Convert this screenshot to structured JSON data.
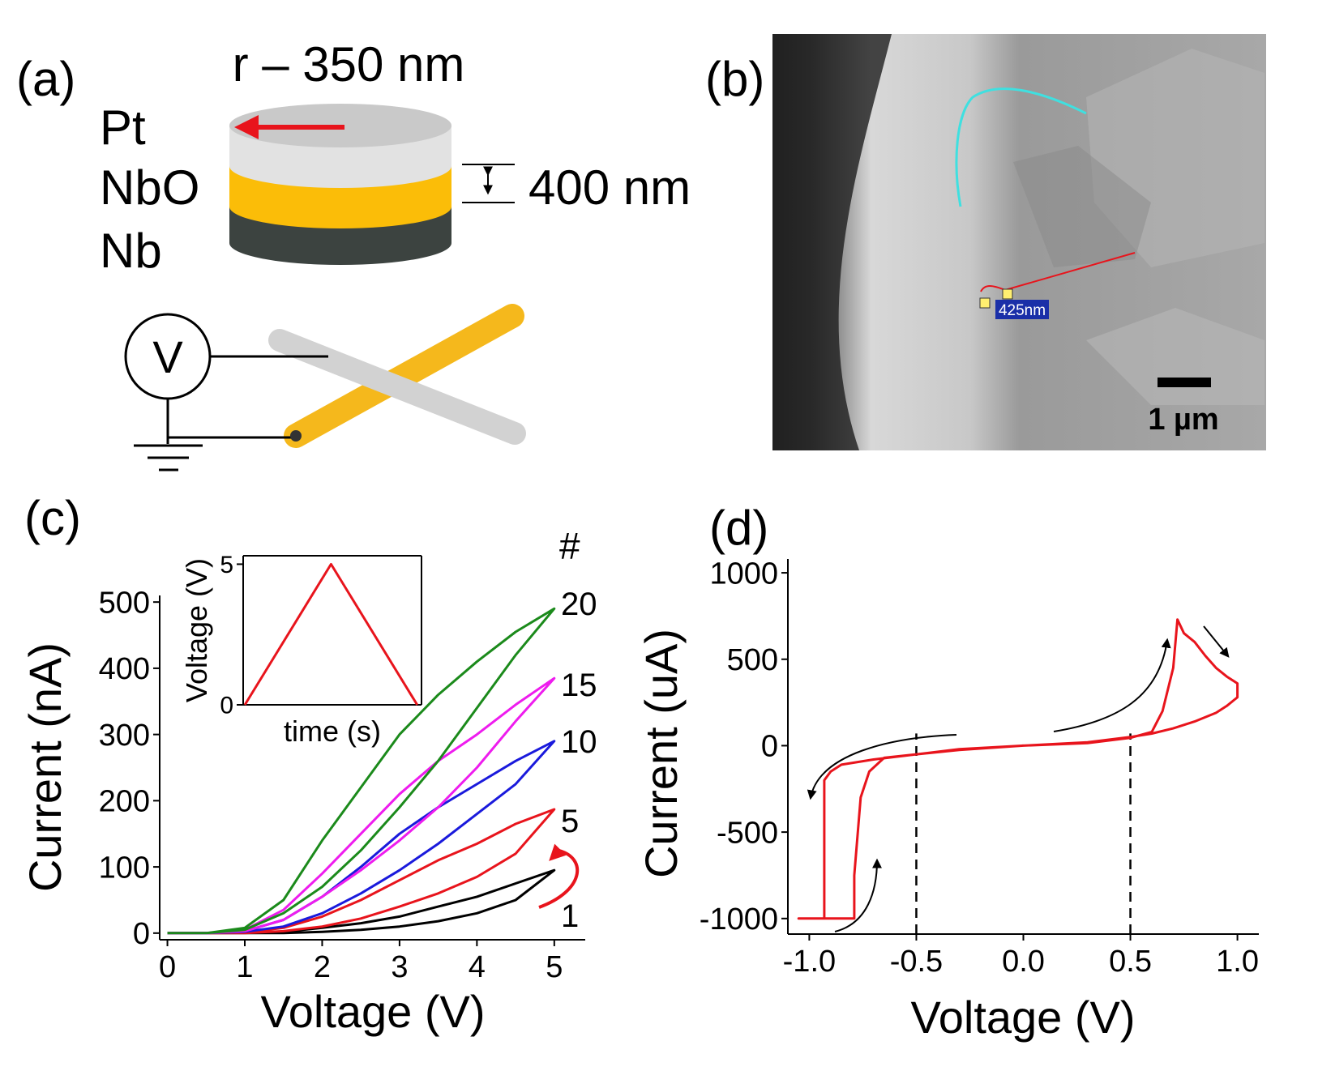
{
  "panels": {
    "a": {
      "label": "(a)",
      "radius": "r – 350 nm",
      "layers": [
        "Pt",
        "NbO",
        "Nb"
      ],
      "thickness": "400 nm",
      "meter": "V"
    },
    "b": {
      "label": "(b)",
      "measure": "425nm",
      "scale_bar": "1 µm"
    }
  },
  "chart_data": [
    {
      "type": "line",
      "panel_label": "(c)",
      "legend_title": "#",
      "xlabel": "Voltage (V)",
      "ylabel": "Current (nA)",
      "xlim": [
        -0.1,
        5.4
      ],
      "ylim": [
        -10,
        510
      ],
      "xticks": [
        0,
        1,
        2,
        3,
        4,
        5
      ],
      "yticks": [
        0,
        100,
        200,
        300,
        400,
        500
      ],
      "series": [
        {
          "name": "1",
          "color": "#000000",
          "x": [
            0,
            0.5,
            1,
            1.5,
            2,
            2.5,
            3,
            3.5,
            4,
            4.5,
            5,
            4.5,
            4,
            3.5,
            3,
            2.5,
            2,
            1.5,
            1,
            0.5,
            0
          ],
          "values": [
            0,
            0,
            0,
            2,
            8,
            15,
            25,
            40,
            55,
            75,
            95,
            50,
            30,
            18,
            10,
            5,
            2,
            0,
            0,
            0,
            0
          ]
        },
        {
          "name": "5",
          "color": "#e8141c",
          "x": [
            0,
            0.5,
            1,
            1.5,
            2,
            2.5,
            3,
            3.5,
            4,
            4.5,
            5,
            4.5,
            4,
            3.5,
            3,
            2.5,
            2,
            1.5,
            1,
            0.5,
            0
          ],
          "values": [
            0,
            0,
            1,
            8,
            25,
            50,
            80,
            110,
            135,
            165,
            187,
            120,
            85,
            60,
            40,
            22,
            10,
            3,
            0,
            0,
            0
          ]
        },
        {
          "name": "10",
          "color": "#1a1adc",
          "x": [
            0,
            0.5,
            1,
            1.5,
            2,
            2.5,
            3,
            3.5,
            4,
            4.5,
            5,
            4.5,
            4,
            3.5,
            3,
            2.5,
            2,
            1.5,
            1,
            0.5,
            0
          ],
          "values": [
            0,
            0,
            3,
            20,
            55,
            100,
            150,
            190,
            225,
            260,
            290,
            225,
            180,
            135,
            95,
            60,
            30,
            10,
            2,
            0,
            0
          ]
        },
        {
          "name": "15",
          "color": "#ee1cee",
          "x": [
            0,
            0.5,
            1,
            1.5,
            2,
            2.5,
            3,
            3.5,
            4,
            4.5,
            5,
            4.5,
            4,
            3.5,
            3,
            2.5,
            2,
            1.5,
            1,
            0.5,
            0
          ],
          "values": [
            0,
            0,
            5,
            35,
            90,
            150,
            210,
            260,
            300,
            345,
            385,
            320,
            250,
            190,
            140,
            95,
            55,
            20,
            3,
            0,
            0
          ]
        },
        {
          "name": "20",
          "color": "#1b8a1b",
          "x": [
            0,
            0.5,
            1,
            1.5,
            2,
            2.5,
            3,
            3.5,
            4,
            4.5,
            5,
            4.5,
            4,
            3.5,
            3,
            2.5,
            2,
            1.5,
            1,
            0.5,
            0
          ],
          "values": [
            0,
            0,
            8,
            50,
            140,
            220,
            300,
            360,
            410,
            455,
            490,
            420,
            340,
            260,
            190,
            125,
            70,
            30,
            5,
            0,
            0
          ]
        }
      ]
    },
    {
      "type": "line",
      "xlabel": "time (s)",
      "ylabel": "Voltage (V)",
      "xlim": [
        -0.02,
        2.05
      ],
      "ylim": [
        0,
        5.3
      ],
      "yticks": [
        0,
        5
      ],
      "series": [
        {
          "color": "#e8141c",
          "x": [
            0,
            1,
            2
          ],
          "values": [
            0,
            5,
            0
          ]
        }
      ]
    },
    {
      "type": "line",
      "panel_label": "(d)",
      "xlabel": "Voltage (V)",
      "ylabel": "Current (uA)",
      "xlim": [
        -1.1,
        1.1
      ],
      "ylim": [
        -1090,
        1080
      ],
      "xticks": [
        {
          "value": -1,
          "label": "-1.0"
        },
        {
          "value": -0.5,
          "label": "-0.5"
        },
        {
          "value": 0,
          "label": "0.0"
        },
        {
          "value": 0.5,
          "label": "0.5"
        },
        {
          "value": 1,
          "label": "1.0"
        }
      ],
      "yticks": [
        -1000,
        -500,
        0,
        500,
        1000
      ],
      "vlines": [
        -0.5,
        0.5
      ],
      "series": [
        {
          "color": "#e8141c",
          "x": [
            0,
            0.3,
            0.5,
            0.6,
            0.65,
            0.7,
            0.72,
            0.75,
            0.8,
            0.85,
            0.9,
            0.95,
            1.0,
            1.0,
            0.95,
            0.9,
            0.8,
            0.7,
            0.6,
            0.5,
            0.3,
            0,
            -0.3,
            -0.5,
            -0.7,
            -0.85,
            -0.9,
            -0.93,
            -0.93,
            -1.05,
            -0.79,
            -0.79,
            -0.76,
            -0.72,
            -0.65,
            -0.5,
            -0.3,
            0
          ],
          "values": [
            0,
            15,
            45,
            80,
            200,
            450,
            730,
            650,
            600,
            520,
            450,
            400,
            360,
            280,
            230,
            190,
            140,
            100,
            70,
            50,
            20,
            0,
            -20,
            -50,
            -80,
            -110,
            -150,
            -200,
            -1000,
            -1000,
            -1000,
            -750,
            -300,
            -150,
            -70,
            -50,
            -25,
            0
          ]
        }
      ]
    }
  ]
}
